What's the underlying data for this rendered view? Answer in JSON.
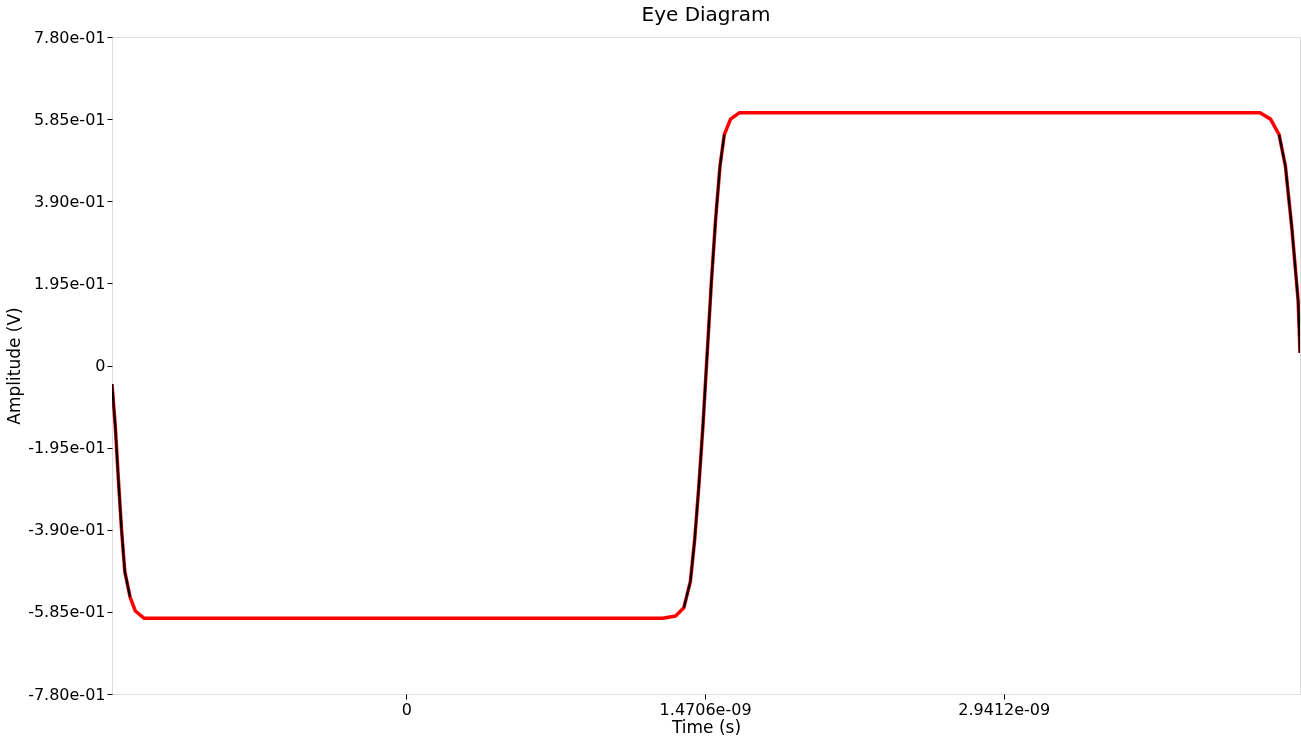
{
  "chart_data": {
    "type": "line",
    "title": "Eye Diagram",
    "xlabel": "Time (s)",
    "ylabel": "Amplitude (V)",
    "xlim": [
      -1.45e-09,
      4.4e-09
    ],
    "ylim": [
      -0.78,
      0.78
    ],
    "xticks": [
      0,
      {
        "value": 1.4706e-09,
        "label": "1.4706e-09"
      },
      {
        "value": 2.9412e-09,
        "label": "2.9412e-09"
      }
    ],
    "yticks": [
      {
        "value": -0.78,
        "label": "-7.80e-01"
      },
      {
        "value": -0.585,
        "label": "-5.85e-01"
      },
      {
        "value": -0.39,
        "label": "-3.90e-01"
      },
      {
        "value": -0.195,
        "label": "-1.95e-01"
      },
      0,
      {
        "value": 0.195,
        "label": "1.95e-01"
      },
      {
        "value": 0.39,
        "label": "3.90e-01"
      },
      {
        "value": 0.585,
        "label": "5.85e-01"
      },
      {
        "value": 0.78,
        "label": "7.80e-01"
      }
    ],
    "grid": false,
    "marker": "none",
    "line_style": "solid",
    "series": [
      {
        "color": "#ff0000",
        "x": [
          -1.45e-09,
          -1.434e-09,
          -1.419e-09,
          -1.403e-09,
          -1.387e-09,
          -1.361e-09,
          -1.335e-09,
          -1.293e-09,
          1.262e-09,
          1.325e-09,
          1.366e-09,
          1.398e-09,
          1.419e-09,
          1.439e-09,
          1.46e-09,
          1.481e-09,
          1.502e-09,
          1.523e-09,
          1.544e-09,
          1.565e-09,
          1.596e-09,
          1.638e-09,
          4.203e-09,
          4.255e-09,
          4.297e-09,
          4.328e-09,
          4.36e-09,
          4.391e-09,
          4.4e-09
        ],
        "values": [
          -0.044,
          -0.143,
          -0.267,
          -0.39,
          -0.489,
          -0.55,
          -0.583,
          -0.6,
          -0.6,
          -0.595,
          -0.575,
          -0.513,
          -0.415,
          -0.291,
          -0.143,
          0.03,
          0.202,
          0.351,
          0.474,
          0.548,
          0.585,
          0.6,
          0.6,
          0.585,
          0.548,
          0.474,
          0.326,
          0.153,
          0.03
        ]
      },
      {
        "color": "#000000",
        "x": [
          -1.45e-09,
          -1.434e-09,
          -1.419e-09,
          -1.403e-09,
          -1.387e-09,
          -1.361e-09,
          0,
          1.366e-09,
          1.398e-09,
          1.419e-09,
          1.439e-09,
          1.46e-09,
          1.481e-09,
          1.502e-09,
          1.523e-09,
          1.544e-09,
          1.565e-09,
          2.9412e-09,
          4.297e-09,
          4.328e-09,
          4.36e-09,
          4.391e-09,
          4.4e-09
        ],
        "values": [
          -0.044,
          -0.143,
          -0.267,
          -0.39,
          -0.489,
          -0.55,
          null,
          -0.575,
          -0.513,
          -0.415,
          -0.291,
          -0.143,
          0.03,
          0.202,
          0.351,
          0.474,
          0.548,
          null,
          0.548,
          0.474,
          0.326,
          0.153,
          0.03
        ]
      }
    ]
  }
}
